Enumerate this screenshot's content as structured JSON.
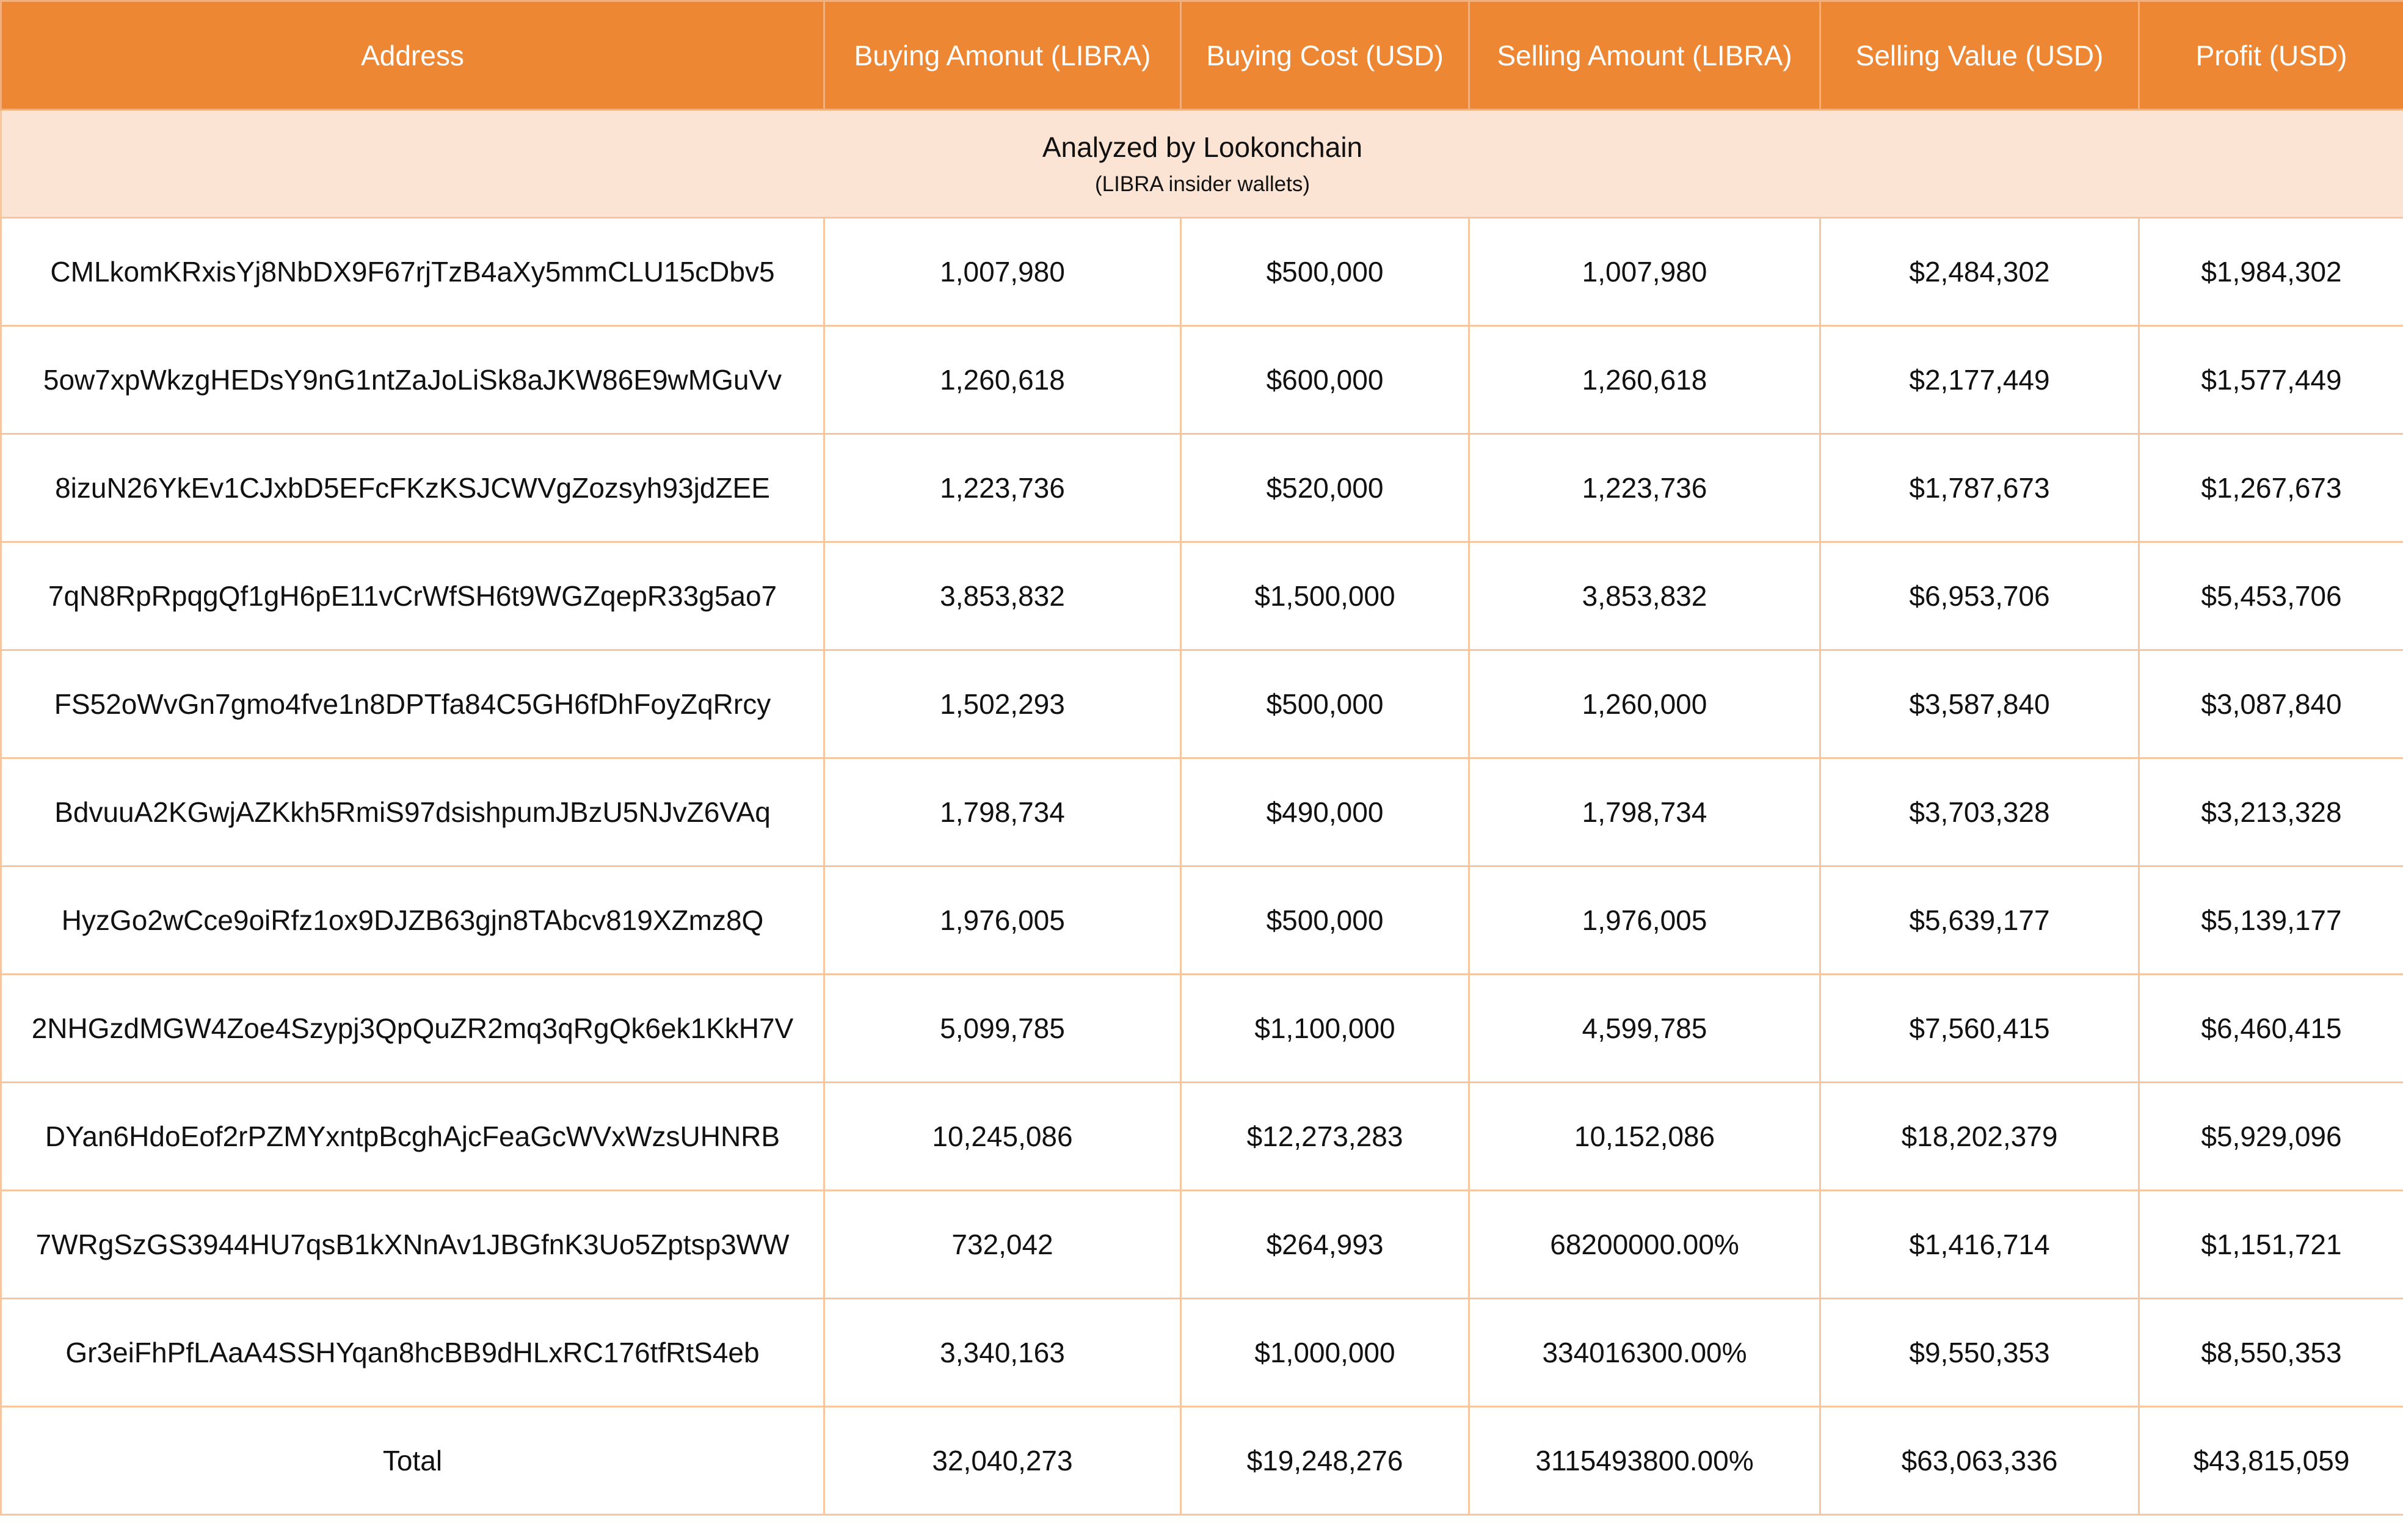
{
  "table": {
    "header": [
      "Address",
      "Buying Amonut (LIBRA)",
      "Buying Cost (USD)",
      "Selling Amount (LIBRA)",
      "Selling Value (USD)",
      "Profit (USD)"
    ],
    "subheader": {
      "title": "Analyzed by Lookonchain",
      "note": "(LIBRA insider wallets)"
    },
    "rows": [
      [
        "CMLkomKRxisYj8NbDX9F67rjTzB4aXy5mmCLU15cDbv5",
        "1,007,980",
        "$500,000",
        "1,007,980",
        "$2,484,302",
        "$1,984,302"
      ],
      [
        "5ow7xpWkzgHEDsY9nG1ntZaJoLiSk8aJKW86E9wMGuVv",
        "1,260,618",
        "$600,000",
        "1,260,618",
        "$2,177,449",
        "$1,577,449"
      ],
      [
        "8izuN26YkEv1CJxbD5EFcFKzKSJCWVgZozsyh93jdZEE",
        "1,223,736",
        "$520,000",
        "1,223,736",
        "$1,787,673",
        "$1,267,673"
      ],
      [
        "7qN8RpRpqgQf1gH6pE11vCrWfSH6t9WGZqepR33g5ao7",
        "3,853,832",
        "$1,500,000",
        "3,853,832",
        "$6,953,706",
        "$5,453,706"
      ],
      [
        "FS52oWvGn7gmo4fve1n8DPTfa84C5GH6fDhFoyZqRrcy",
        "1,502,293",
        "$500,000",
        "1,260,000",
        "$3,587,840",
        "$3,087,840"
      ],
      [
        "BdvuuA2KGwjAZKkh5RmiS97dsishpumJBzU5NJvZ6VAq",
        "1,798,734",
        "$490,000",
        "1,798,734",
        "$3,703,328",
        "$3,213,328"
      ],
      [
        "HyzGo2wCce9oiRfz1ox9DJZB63gjn8TAbcv819XZmz8Q",
        "1,976,005",
        "$500,000",
        "1,976,005",
        "$5,639,177",
        "$5,139,177"
      ],
      [
        "2NHGzdMGW4Zoe4Szypj3QpQuZR2mq3qRgQk6ek1KkH7V",
        "5,099,785",
        "$1,100,000",
        "4,599,785",
        "$7,560,415",
        "$6,460,415"
      ],
      [
        "DYan6HdoEof2rPZMYxntpBcghAjcFeaGcWVxWzsUHNRB",
        "10,245,086",
        "$12,273,283",
        "10,152,086",
        "$18,202,379",
        "$5,929,096"
      ],
      [
        "7WRgSzGS3944HU7qsB1kXNnAv1JBGfnK3Uo5Zptsp3WW",
        "732,042",
        "$264,993",
        "68200000.00%",
        "$1,416,714",
        "$1,151,721"
      ],
      [
        "Gr3eiFhPfLAaA4SSHYqan8hcBB9dHLxRC176tfRtS4eb",
        "3,340,163",
        "$1,000,000",
        "334016300.00%",
        "$9,550,353",
        "$8,550,353"
      ]
    ],
    "total": [
      "Total",
      "32,040,273",
      "$19,248,276",
      "3115493800.00%",
      "$63,063,336",
      "$43,815,059"
    ]
  }
}
